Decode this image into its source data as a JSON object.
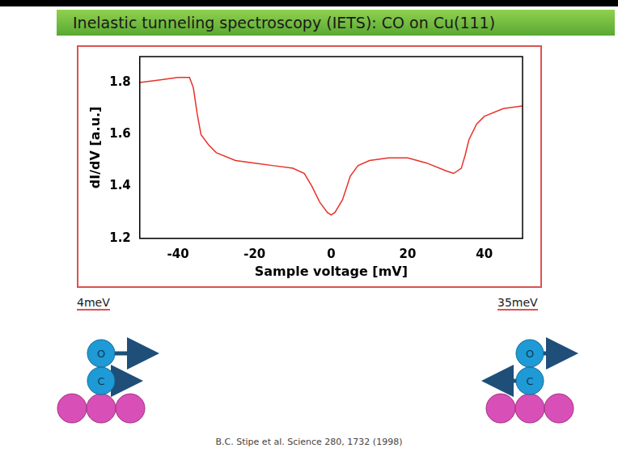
{
  "chart_data": {
    "type": "line",
    "title": "Inelastic tunneling spectroscopy (IETS): CO on Cu(111)",
    "x_label": "Sample voltage [mV]",
    "y_label": "dI/dV [a.u.]",
    "x": [
      -50,
      -45,
      -40,
      -37,
      -36,
      -35,
      -34,
      -32,
      -30,
      -25,
      -20,
      -15,
      -10,
      -7,
      -5,
      -3,
      -1,
      0,
      1,
      3,
      5,
      7,
      10,
      15,
      20,
      25,
      30,
      32,
      34,
      35,
      36,
      38,
      40,
      45,
      50
    ],
    "values": [
      1.8,
      1.81,
      1.82,
      1.82,
      1.78,
      1.68,
      1.6,
      1.56,
      1.53,
      1.5,
      1.49,
      1.48,
      1.47,
      1.45,
      1.4,
      1.34,
      1.3,
      1.29,
      1.3,
      1.35,
      1.44,
      1.48,
      1.5,
      1.51,
      1.51,
      1.49,
      1.46,
      1.45,
      1.47,
      1.52,
      1.58,
      1.64,
      1.67,
      1.7,
      1.71
    ],
    "color": "#e8312a",
    "xlim": [
      -50,
      50
    ],
    "xticks": [
      -40,
      -20,
      0,
      20,
      40
    ],
    "ylim": [
      1.2,
      1.9
    ],
    "yticks": [
      1.2,
      1.4,
      1.6,
      1.8
    ],
    "grid": false
  },
  "modes": [
    {
      "label": "4meV",
      "atoms": [
        "O",
        "C"
      ]
    },
    {
      "label": "35meV",
      "atoms": [
        "O",
        "C"
      ]
    }
  ],
  "citation": "B.C. Stipe et al. Science 280, 1732 (1998)"
}
